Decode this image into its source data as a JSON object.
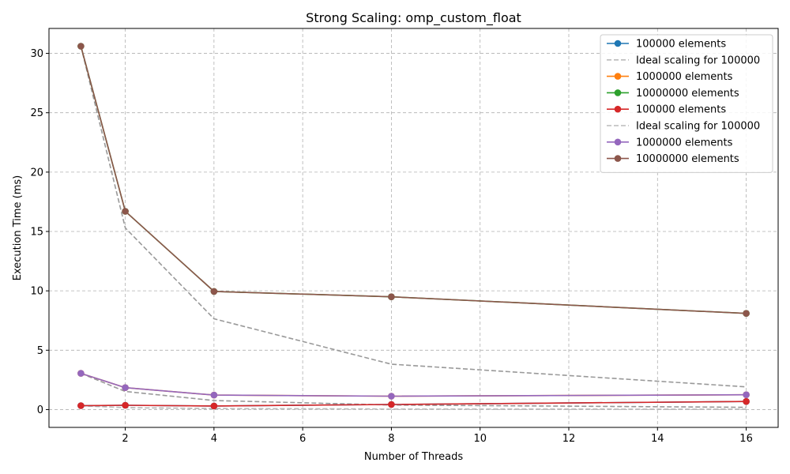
{
  "chart_data": {
    "type": "line",
    "title": "Strong Scaling: omp_custom_float",
    "xlabel": "Number of Threads",
    "ylabel": "Execution Time (ms)",
    "xlim": [
      0.28,
      16.72
    ],
    "ylim": [
      -1.5,
      32.1
    ],
    "xticks": [
      2,
      4,
      6,
      8,
      10,
      12,
      14,
      16
    ],
    "yticks": [
      0,
      5,
      10,
      15,
      20,
      25,
      30
    ],
    "grid": true,
    "legend_position": "top-right",
    "x": [
      1,
      2,
      4,
      8,
      16
    ],
    "series": [
      {
        "name": "100000 elements",
        "color": "#1f77b4",
        "style": "solid-marker",
        "values": [
          0.33,
          0.36,
          0.3,
          0.43,
          0.68
        ]
      },
      {
        "name": "Ideal scaling for 100000",
        "color": "#bbbbbb",
        "style": "dashed",
        "values": [
          0.33,
          0.165,
          0.0825,
          0.041,
          0.021
        ]
      },
      {
        "name": "1000000 elements",
        "color": "#ff7f0e",
        "style": "solid-marker",
        "values": [
          3.05,
          1.85,
          1.22,
          1.13,
          1.25
        ]
      },
      {
        "name": "10000000 elements",
        "color": "#2ca02c",
        "style": "solid-marker",
        "values": [
          30.6,
          16.7,
          9.95,
          9.5,
          8.1
        ]
      },
      {
        "name": "100000 elements",
        "color": "#d62728",
        "style": "solid-marker",
        "values": [
          0.33,
          0.36,
          0.3,
          0.43,
          0.68
        ]
      },
      {
        "name": "Ideal scaling for 100000",
        "color": "#bbbbbb",
        "style": "dashed",
        "values": [
          0.33,
          0.165,
          0.0825,
          0.041,
          0.021
        ]
      },
      {
        "name": "1000000 elements",
        "color": "#9467bd",
        "style": "solid-marker",
        "values": [
          3.05,
          1.85,
          1.22,
          1.13,
          1.25
        ]
      },
      {
        "name": "10000000 elements",
        "color": "#8c564b",
        "style": "solid-marker",
        "values": [
          30.6,
          16.7,
          9.95,
          9.5,
          8.1
        ]
      },
      {
        "name": "",
        "color": "#999999",
        "style": "dashed-nolegend",
        "values": [
          3.05,
          1.525,
          0.7625,
          0.381,
          0.19
        ]
      },
      {
        "name": "",
        "color": "#999999",
        "style": "dashed-nolegend",
        "values": [
          30.6,
          15.3,
          7.65,
          3.825,
          1.9125
        ]
      }
    ]
  }
}
